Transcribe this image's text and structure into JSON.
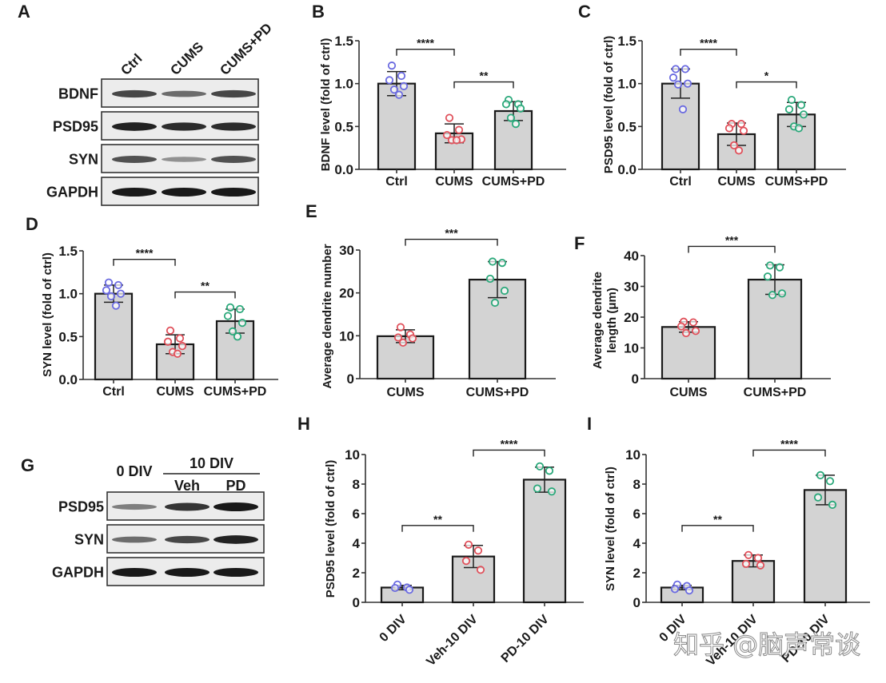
{
  "watermark": "知乎 @脑声常谈",
  "colors": {
    "bar_fill": "#d3d3d3",
    "bar_stroke": "#1a1a1a",
    "dot_blue": "#6a6ae0",
    "dot_red": "#e0505a",
    "dot_green": "#2aa87a"
  },
  "blots": [
    {
      "panel": "A",
      "lanes": [
        "Ctrl",
        "CUMS",
        "CUMS+PD"
      ],
      "group_header": null,
      "rows": [
        {
          "label": "BDNF",
          "intensity": [
            0.75,
            0.55,
            0.75
          ]
        },
        {
          "label": "PSD95",
          "intensity": [
            0.95,
            0.9,
            0.9
          ]
        },
        {
          "label": "SYN",
          "intensity": [
            0.7,
            0.35,
            0.7
          ]
        },
        {
          "label": "GAPDH",
          "intensity": [
            1.0,
            1.0,
            1.0
          ]
        }
      ]
    },
    {
      "panel": "G",
      "lanes": [
        "0 DIV",
        "Veh",
        "PD"
      ],
      "group_header": "10 DIV",
      "rows": [
        {
          "label": "PSD95",
          "intensity": [
            0.45,
            0.85,
            1.0
          ]
        },
        {
          "label": "SYN",
          "intensity": [
            0.55,
            0.75,
            0.95
          ]
        },
        {
          "label": "GAPDH",
          "intensity": [
            1.0,
            1.0,
            1.0
          ]
        }
      ]
    }
  ],
  "chart_data": [
    {
      "panel": "B",
      "type": "bar",
      "title": "",
      "xlabel": "",
      "ylabel": "BDNF level (fold of ctrl)",
      "categories": [
        "Ctrl",
        "CUMS",
        "CUMS+PD"
      ],
      "values": [
        1.0,
        0.42,
        0.68
      ],
      "sd": [
        0.14,
        0.11,
        0.11
      ],
      "points": [
        [
          1.21,
          1.09,
          1.04,
          0.97,
          0.93,
          0.87
        ],
        [
          0.6,
          0.46,
          0.4,
          0.35,
          0.34,
          0.34
        ],
        [
          0.81,
          0.76,
          0.76,
          0.71,
          0.6,
          0.53
        ]
      ],
      "point_colors": [
        "dot_blue",
        "dot_red",
        "dot_green"
      ],
      "ylim": [
        0,
        1.5
      ],
      "yticks": [
        "0.0",
        "0.5",
        "1.0",
        "1.5"
      ],
      "tick_values": [
        0,
        0.5,
        1.0,
        1.5
      ],
      "significance": [
        {
          "from": 0,
          "to": 1,
          "label": "****",
          "level": 1.4
        },
        {
          "from": 1,
          "to": 2,
          "label": "**",
          "level": 1.02
        }
      ]
    },
    {
      "panel": "C",
      "type": "bar",
      "xlabel": "",
      "ylabel": "PSD95 level (fold of ctrl)",
      "categories": [
        "Ctrl",
        "CUMS",
        "CUMS+PD"
      ],
      "values": [
        1.0,
        0.41,
        0.64
      ],
      "sd": [
        0.17,
        0.13,
        0.14
      ],
      "points": [
        [
          1.17,
          1.17,
          1.07,
          1.0,
          0.99,
          0.7
        ],
        [
          0.53,
          0.53,
          0.48,
          0.45,
          0.28,
          0.22
        ],
        [
          0.81,
          0.75,
          0.7,
          0.64,
          0.5,
          0.48
        ]
      ],
      "point_colors": [
        "dot_blue",
        "dot_red",
        "dot_green"
      ],
      "ylim": [
        0,
        1.5
      ],
      "yticks": [
        "0.0",
        "0.5",
        "1.0",
        "1.5"
      ],
      "tick_values": [
        0,
        0.5,
        1.0,
        1.5
      ],
      "significance": [
        {
          "from": 0,
          "to": 1,
          "label": "****",
          "level": 1.4
        },
        {
          "from": 1,
          "to": 2,
          "label": "*",
          "level": 1.02
        }
      ]
    },
    {
      "panel": "D",
      "type": "bar",
      "xlabel": "",
      "ylabel": "SYN level (fold of ctrl)",
      "categories": [
        "Ctrl",
        "CUMS",
        "CUMS+PD"
      ],
      "values": [
        1.0,
        0.41,
        0.68
      ],
      "sd": [
        0.1,
        0.11,
        0.14
      ],
      "points": [
        [
          1.13,
          1.1,
          1.04,
          1.0,
          0.97,
          0.86
        ],
        [
          0.57,
          0.48,
          0.44,
          0.39,
          0.32,
          0.3
        ],
        [
          0.84,
          0.82,
          0.74,
          0.66,
          0.56,
          0.5
        ]
      ],
      "point_colors": [
        "dot_blue",
        "dot_red",
        "dot_green"
      ],
      "ylim": [
        0,
        1.5
      ],
      "yticks": [
        "0.0",
        "0.5",
        "1.0",
        "1.5"
      ],
      "tick_values": [
        0,
        0.5,
        1.0,
        1.5
      ],
      "significance": [
        {
          "from": 0,
          "to": 1,
          "label": "****",
          "level": 1.4
        },
        {
          "from": 1,
          "to": 2,
          "label": "**",
          "level": 1.02
        }
      ]
    },
    {
      "panel": "E",
      "type": "bar",
      "xlabel": "",
      "ylabel": "Average dendrite number",
      "categories": [
        "CUMS",
        "CUMS+PD"
      ],
      "values": [
        9.9,
        23.1
      ],
      "sd": [
        1.5,
        4.2
      ],
      "points": [
        [
          12.0,
          10.3,
          9.6,
          9.4,
          8.4
        ],
        [
          27.3,
          27.0,
          23.3,
          20.5,
          17.7
        ]
      ],
      "point_colors": [
        "dot_red",
        "dot_green"
      ],
      "ylim": [
        0,
        30
      ],
      "yticks": [
        "0",
        "10",
        "20",
        "30"
      ],
      "tick_values": [
        0,
        10,
        20,
        30
      ],
      "significance": [
        {
          "from": 0,
          "to": 1,
          "label": "***",
          "level": 32.5
        }
      ]
    },
    {
      "panel": "F",
      "type": "bar",
      "xlabel": "",
      "ylabel": "Average dendrite length (μm)",
      "categories": [
        "CUMS",
        "CUMS+PD"
      ],
      "values": [
        16.8,
        32.2
      ],
      "sd": [
        1.7,
        4.8
      ],
      "points": [
        [
          18.5,
          18.3,
          17.0,
          15.5,
          14.8
        ],
        [
          36.8,
          36.2,
          33.2,
          27.7,
          27.2
        ]
      ],
      "point_colors": [
        "dot_red",
        "dot_green"
      ],
      "ylim": [
        0,
        40
      ],
      "yticks": [
        "0",
        "10",
        "20",
        "30",
        "40"
      ],
      "tick_values": [
        0,
        10,
        20,
        30,
        40
      ],
      "significance": [
        {
          "from": 0,
          "to": 1,
          "label": "***",
          "level": 43
        }
      ]
    },
    {
      "panel": "H",
      "type": "bar",
      "xlabel": "",
      "ylabel": "PSD95 level (fold of ctrl)",
      "categories": [
        "0 DIV",
        "Veh-10 DIV",
        "PD-10 DIV"
      ],
      "values": [
        1.0,
        3.1,
        8.3
      ],
      "sd": [
        0.15,
        0.75,
        0.85
      ],
      "points": [
        [
          1.2,
          1.0,
          0.97,
          0.85
        ],
        [
          3.9,
          3.5,
          2.8,
          2.2
        ],
        [
          9.2,
          8.9,
          7.7,
          7.5
        ]
      ],
      "point_colors": [
        "dot_blue",
        "dot_red",
        "dot_green"
      ],
      "ylim": [
        0,
        10
      ],
      "yticks": [
        "0",
        "2",
        "4",
        "6",
        "8",
        "10"
      ],
      "tick_values": [
        0,
        2,
        4,
        6,
        8,
        10
      ],
      "rotate_xticks": true,
      "significance": [
        {
          "from": 0,
          "to": 1,
          "label": "**",
          "level": 5.2
        },
        {
          "from": 1,
          "to": 2,
          "label": "****",
          "level": 10.3
        }
      ]
    },
    {
      "panel": "I",
      "type": "bar",
      "xlabel": "",
      "ylabel": "SYN level (fold of ctrl)",
      "categories": [
        "0 DIV",
        "Veh-10 DIV",
        "PD-10 DIV"
      ],
      "values": [
        1.0,
        2.8,
        7.6
      ],
      "sd": [
        0.15,
        0.4,
        1.0
      ],
      "points": [
        [
          1.2,
          1.1,
          0.9,
          0.8
        ],
        [
          3.2,
          3.0,
          2.6,
          2.5
        ],
        [
          8.6,
          8.2,
          7.1,
          6.6
        ]
      ],
      "point_colors": [
        "dot_blue",
        "dot_red",
        "dot_green"
      ],
      "ylim": [
        0,
        10
      ],
      "yticks": [
        "0",
        "2",
        "4",
        "6",
        "8",
        "10"
      ],
      "tick_values": [
        0,
        2,
        4,
        6,
        8,
        10
      ],
      "rotate_xticks": true,
      "significance": [
        {
          "from": 0,
          "to": 1,
          "label": "**",
          "level": 5.2
        },
        {
          "from": 1,
          "to": 2,
          "label": "****",
          "level": 10.3
        }
      ]
    }
  ]
}
